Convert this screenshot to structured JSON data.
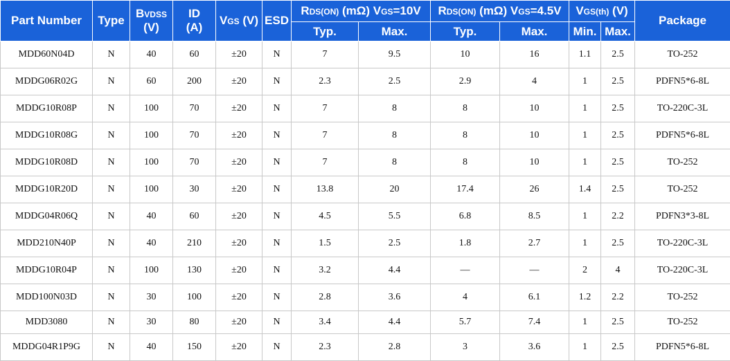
{
  "header": {
    "part_number": "Part Number",
    "type": "Type",
    "bvdss_main": "B",
    "bvdss_sub": "VDSS",
    "bvdss_unit": "(V)",
    "id_main": "ID",
    "id_unit": "(A)",
    "vgs_main": "V",
    "vgs_sub": "GS",
    "vgs_unit": " (V)",
    "esd": "ESD",
    "rds10_r": "R",
    "rds10_sub": "DS(ON)",
    "rds10_unit": " (mΩ) V",
    "rds10_gs": "GS",
    "rds10_val": "=10V",
    "rds45_r": "R",
    "rds45_sub": "DS(ON)",
    "rds45_unit": " (mΩ) V",
    "rds45_gs": "GS",
    "rds45_val": "=4.5V",
    "vth_v": "V",
    "vth_sub": "GS(th)",
    "vth_unit": " (V)",
    "package": "Package",
    "typ": "Typ.",
    "max": "Max.",
    "min": "Min."
  },
  "rows": [
    {
      "part": "MDD60N04D",
      "type": "N",
      "bvdss": "40",
      "id": "60",
      "vgs": "±20",
      "esd": "N",
      "r10_typ": "7",
      "r10_max": "9.5",
      "r45_typ": "10",
      "r45_max": "16",
      "vth_min": "1.1",
      "vth_max": "2.5",
      "pkg": "TO-252"
    },
    {
      "part": "MDDG06R02G",
      "type": "N",
      "bvdss": "60",
      "id": "200",
      "vgs": "±20",
      "esd": "N",
      "r10_typ": "2.3",
      "r10_max": "2.5",
      "r45_typ": "2.9",
      "r45_max": "4",
      "vth_min": "1",
      "vth_max": "2.5",
      "pkg": "PDFN5*6-8L"
    },
    {
      "part": "MDDG10R08P",
      "type": "N",
      "bvdss": "100",
      "id": "70",
      "vgs": "±20",
      "esd": "N",
      "r10_typ": "7",
      "r10_max": "8",
      "r45_typ": "8",
      "r45_max": "10",
      "vth_min": "1",
      "vth_max": "2.5",
      "pkg": "TO-220C-3L"
    },
    {
      "part": "MDDG10R08G",
      "type": "N",
      "bvdss": "100",
      "id": "70",
      "vgs": "±20",
      "esd": "N",
      "r10_typ": "7",
      "r10_max": "8",
      "r45_typ": "8",
      "r45_max": "10",
      "vth_min": "1",
      "vth_max": "2.5",
      "pkg": "PDFN5*6-8L"
    },
    {
      "part": "MDDG10R08D",
      "type": "N",
      "bvdss": "100",
      "id": "70",
      "vgs": "±20",
      "esd": "N",
      "r10_typ": "7",
      "r10_max": "8",
      "r45_typ": "8",
      "r45_max": "10",
      "vth_min": "1",
      "vth_max": "2.5",
      "pkg": "TO-252"
    },
    {
      "part": "MDDG10R20D",
      "type": "N",
      "bvdss": "100",
      "id": "30",
      "vgs": "±20",
      "esd": "N",
      "r10_typ": "13.8",
      "r10_max": "20",
      "r45_typ": "17.4",
      "r45_max": "26",
      "vth_min": "1.4",
      "vth_max": "2.5",
      "pkg": "TO-252"
    },
    {
      "part": "MDDG04R06Q",
      "type": "N",
      "bvdss": "40",
      "id": "60",
      "vgs": "±20",
      "esd": "N",
      "r10_typ": "4.5",
      "r10_max": "5.5",
      "r45_typ": "6.8",
      "r45_max": "8.5",
      "vth_min": "1",
      "vth_max": "2.2",
      "pkg": "PDFN3*3-8L"
    },
    {
      "part": "MDD210N40P",
      "type": "N",
      "bvdss": "40",
      "id": "210",
      "vgs": "±20",
      "esd": "N",
      "r10_typ": "1.5",
      "r10_max": "2.5",
      "r45_typ": "1.8",
      "r45_max": "2.7",
      "vth_min": "1",
      "vth_max": "2.5",
      "pkg": "TO-220C-3L"
    },
    {
      "part": "MDDG10R04P",
      "type": "N",
      "bvdss": "100",
      "id": "130",
      "vgs": "±20",
      "esd": "N",
      "r10_typ": "3.2",
      "r10_max": "4.4",
      "r45_typ": "—",
      "r45_max": "—",
      "vth_min": "2",
      "vth_max": "4",
      "pkg": "TO-220C-3L"
    },
    {
      "part": "MDD100N03D",
      "type": "N",
      "bvdss": "30",
      "id": "100",
      "vgs": "±20",
      "esd": "N",
      "r10_typ": "2.8",
      "r10_max": "3.6",
      "r45_typ": "4",
      "r45_max": "6.1",
      "vth_min": "1.2",
      "vth_max": "2.2",
      "pkg": "TO-252"
    },
    {
      "part": "MDD3080",
      "type": "N",
      "bvdss": "30",
      "id": "80",
      "vgs": "±20",
      "esd": "N",
      "r10_typ": "3.4",
      "r10_max": "4.4",
      "r45_typ": "5.7",
      "r45_max": "7.4",
      "vth_min": "1",
      "vth_max": "2.5",
      "pkg": "TO-252"
    },
    {
      "part": "MDDG04R1P9G",
      "type": "N",
      "bvdss": "40",
      "id": "150",
      "vgs": "±20",
      "esd": "N",
      "r10_typ": "2.3",
      "r10_max": "2.8",
      "r45_typ": "3",
      "r45_max": "3.6",
      "vth_min": "1",
      "vth_max": "2.5",
      "pkg": "PDFN5*6-8L"
    }
  ]
}
